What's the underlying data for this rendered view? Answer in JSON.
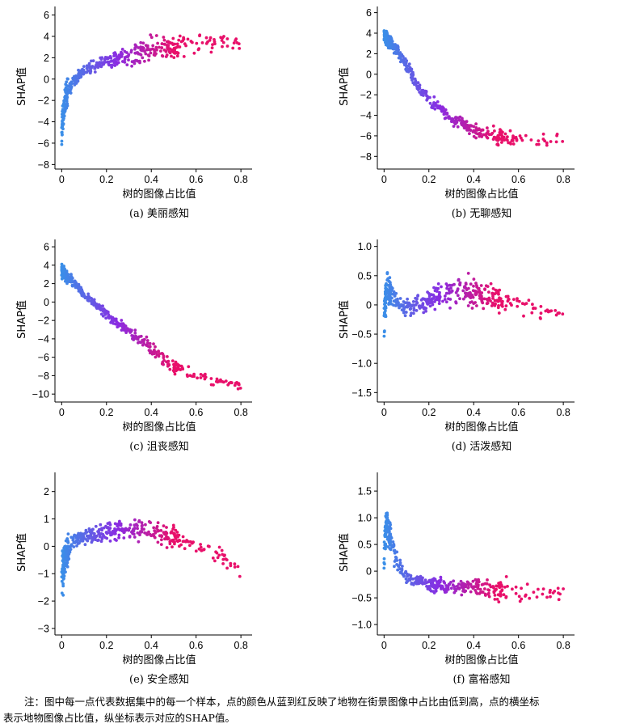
{
  "chart_data": [
    {
      "type": "scatter",
      "xlabel": "树的图像占比值",
      "ylabel": "SHAP值",
      "caption": "(a) 美丽感知",
      "xlim": [
        -0.03,
        0.85
      ],
      "ylim": [
        -8.2,
        6.8
      ],
      "xticks": [
        0,
        0.2,
        0.4,
        0.6,
        0.8
      ],
      "xtick_labels": [
        "0",
        "0.2",
        "0.4",
        "0.6",
        "0.8"
      ],
      "yticks": [
        -8,
        -6,
        -4,
        -2,
        0,
        2,
        4,
        6
      ],
      "ytick_labels": [
        "−8",
        "−6",
        "−4",
        "−2",
        "0",
        "2",
        "4",
        "6"
      ],
      "color_encoding": "x",
      "color_low": "#3a8fe8",
      "color_mid": "#8a2be2",
      "color_high": "#e8106a",
      "trend": [
        [
          0,
          -4.5
        ],
        [
          0.02,
          -1.5
        ],
        [
          0.05,
          -0.3
        ],
        [
          0.1,
          0.8
        ],
        [
          0.15,
          1.3
        ],
        [
          0.2,
          1.7
        ],
        [
          0.3,
          2.3
        ],
        [
          0.4,
          2.8
        ],
        [
          0.5,
          3.0
        ],
        [
          0.6,
          3.3
        ],
        [
          0.7,
          3.6
        ],
        [
          0.8,
          3.5
        ]
      ],
      "spread": [
        [
          0,
          2.6
        ],
        [
          0.05,
          0.8
        ],
        [
          0.2,
          0.9
        ],
        [
          0.4,
          1.7
        ],
        [
          0.6,
          1.5
        ],
        [
          0.8,
          1.2
        ]
      ]
    },
    {
      "type": "scatter",
      "xlabel": "树的图像占比值",
      "ylabel": "SHAP值",
      "caption": "(b) 无聊感知",
      "xlim": [
        -0.03,
        0.85
      ],
      "ylim": [
        -9.0,
        6.6
      ],
      "xticks": [
        0,
        0.2,
        0.4,
        0.6,
        0.8
      ],
      "xtick_labels": [
        "0",
        "0.2",
        "0.4",
        "0.6",
        "0.8"
      ],
      "yticks": [
        -8,
        -6,
        -4,
        -2,
        0,
        2,
        4,
        6
      ],
      "ytick_labels": [
        "−8",
        "−6",
        "−4",
        "−2",
        "0",
        "2",
        "4",
        "6"
      ],
      "color_encoding": "x",
      "color_low": "#3a8fe8",
      "color_mid": "#8a2be2",
      "color_high": "#e8106a",
      "trend": [
        [
          0,
          3.8
        ],
        [
          0.05,
          2.5
        ],
        [
          0.1,
          0.8
        ],
        [
          0.15,
          -1.2
        ],
        [
          0.2,
          -2.5
        ],
        [
          0.3,
          -4.2
        ],
        [
          0.4,
          -5.4
        ],
        [
          0.5,
          -6.0
        ],
        [
          0.6,
          -6.4
        ],
        [
          0.7,
          -6.4
        ],
        [
          0.8,
          -6.3
        ]
      ],
      "spread": [
        [
          0,
          1.0
        ],
        [
          0.1,
          0.8
        ],
        [
          0.3,
          0.9
        ],
        [
          0.5,
          1.0
        ],
        [
          0.8,
          0.6
        ]
      ]
    },
    {
      "type": "scatter",
      "xlabel": "树的图像占比值",
      "ylabel": "SHAP值",
      "caption": "(c) 沮丧感知",
      "xlim": [
        -0.03,
        0.85
      ],
      "ylim": [
        -10.6,
        6.8
      ],
      "xticks": [
        0,
        0.2,
        0.4,
        0.6,
        0.8
      ],
      "xtick_labels": [
        "0",
        "0.2",
        "0.4",
        "0.6",
        "0.8"
      ],
      "yticks": [
        -10,
        -8,
        -6,
        -4,
        -2,
        0,
        2,
        4,
        6
      ],
      "ytick_labels": [
        "−10",
        "−8",
        "−6",
        "−4",
        "−2",
        "0",
        "2",
        "4",
        "6"
      ],
      "color_encoding": "x",
      "color_low": "#3a8fe8",
      "color_mid": "#8a2be2",
      "color_high": "#e8106a",
      "trend": [
        [
          0,
          3.3
        ],
        [
          0.05,
          2.2
        ],
        [
          0.1,
          0.8
        ],
        [
          0.15,
          -0.2
        ],
        [
          0.2,
          -1.3
        ],
        [
          0.3,
          -3.2
        ],
        [
          0.4,
          -5.0
        ],
        [
          0.5,
          -7.0
        ],
        [
          0.6,
          -8.0
        ],
        [
          0.7,
          -8.6
        ],
        [
          0.8,
          -9.1
        ]
      ],
      "spread": [
        [
          0,
          1.2
        ],
        [
          0.1,
          0.6
        ],
        [
          0.3,
          0.8
        ],
        [
          0.5,
          1.1
        ],
        [
          0.8,
          0.5
        ]
      ]
    },
    {
      "type": "scatter",
      "xlabel": "树的图像占比值",
      "ylabel": "SHAP值",
      "caption": "(d) 活泼感知",
      "xlim": [
        -0.03,
        0.85
      ],
      "ylim": [
        -1.62,
        1.12
      ],
      "xticks": [
        0,
        0.2,
        0.4,
        0.6,
        0.8
      ],
      "xtick_labels": [
        "0",
        "0.2",
        "0.4",
        "0.6",
        "0.8"
      ],
      "yticks": [
        -1.5,
        -1.0,
        -0.5,
        0,
        0.5,
        1.0
      ],
      "ytick_labels": [
        "−1.5",
        "−1.0",
        "−0.5",
        "0",
        "0.5",
        "1.0"
      ],
      "color_encoding": "x",
      "color_low": "#3a8fe8",
      "color_mid": "#8a2be2",
      "color_high": "#e8106a",
      "trend": [
        [
          0,
          -0.2
        ],
        [
          0.01,
          0.3
        ],
        [
          0.04,
          0.15
        ],
        [
          0.08,
          -0.05
        ],
        [
          0.15,
          0.0
        ],
        [
          0.25,
          0.15
        ],
        [
          0.35,
          0.25
        ],
        [
          0.45,
          0.15
        ],
        [
          0.55,
          0.05
        ],
        [
          0.65,
          -0.05
        ],
        [
          0.8,
          -0.15
        ]
      ],
      "spread": [
        [
          0,
          0.6
        ],
        [
          0.05,
          0.2
        ],
        [
          0.2,
          0.25
        ],
        [
          0.35,
          0.35
        ],
        [
          0.6,
          0.25
        ],
        [
          0.8,
          0.15
        ]
      ]
    },
    {
      "type": "scatter",
      "xlabel": "树的图像占比值",
      "ylabel": "SHAP值",
      "caption": "(e) 安全感知",
      "xlim": [
        -0.03,
        0.85
      ],
      "ylim": [
        -3.15,
        2.7
      ],
      "xticks": [
        0,
        0.2,
        0.4,
        0.6,
        0.8
      ],
      "xtick_labels": [
        "0",
        "0.2",
        "0.4",
        "0.6",
        "0.8"
      ],
      "yticks": [
        -3,
        -2,
        -1,
        0,
        1,
        2
      ],
      "ytick_labels": [
        "−3",
        "−2",
        "−1",
        "0",
        "1",
        "2"
      ],
      "color_encoding": "x",
      "color_low": "#3a8fe8",
      "color_mid": "#8a2be2",
      "color_high": "#e8106a",
      "trend": [
        [
          0,
          -1.2
        ],
        [
          0.02,
          -0.2
        ],
        [
          0.05,
          0.2
        ],
        [
          0.1,
          0.35
        ],
        [
          0.2,
          0.55
        ],
        [
          0.3,
          0.65
        ],
        [
          0.4,
          0.6
        ],
        [
          0.5,
          0.35
        ],
        [
          0.6,
          0.05
        ],
        [
          0.7,
          -0.35
        ],
        [
          0.8,
          -1.0
        ]
      ],
      "spread": [
        [
          0,
          1.4
        ],
        [
          0.05,
          0.35
        ],
        [
          0.2,
          0.45
        ],
        [
          0.35,
          0.6
        ],
        [
          0.6,
          0.5
        ],
        [
          0.8,
          0.7
        ]
      ]
    },
    {
      "type": "scatter",
      "xlabel": "树的图像占比值",
      "ylabel": "SHAP值",
      "caption": "(f) 富裕感知",
      "xlim": [
        -0.03,
        0.85
      ],
      "ylim": [
        -1.15,
        1.85
      ],
      "xticks": [
        0,
        0.2,
        0.4,
        0.6,
        0.8
      ],
      "xtick_labels": [
        "0",
        "0.2",
        "0.4",
        "0.6",
        "0.8"
      ],
      "yticks": [
        -1.0,
        -0.5,
        0,
        0.5,
        1.0,
        1.5
      ],
      "ytick_labels": [
        "−1.0",
        "−0.5",
        "0",
        "0.5",
        "1.0",
        "1.5"
      ],
      "color_encoding": "x",
      "color_low": "#3a8fe8",
      "color_mid": "#8a2be2",
      "color_high": "#e8106a",
      "trend": [
        [
          0,
          0.3
        ],
        [
          0.01,
          0.9
        ],
        [
          0.03,
          0.6
        ],
        [
          0.06,
          0.15
        ],
        [
          0.1,
          -0.1
        ],
        [
          0.2,
          -0.25
        ],
        [
          0.35,
          -0.3
        ],
        [
          0.5,
          -0.35
        ],
        [
          0.65,
          -0.38
        ],
        [
          0.8,
          -0.4
        ]
      ],
      "spread": [
        [
          0,
          0.5
        ],
        [
          0.03,
          0.35
        ],
        [
          0.1,
          0.15
        ],
        [
          0.3,
          0.2
        ],
        [
          0.5,
          0.3
        ],
        [
          0.8,
          0.2
        ]
      ]
    }
  ],
  "note": {
    "line1": "注：图中每一点代表数据集中的每一个样本，点的颜色从蓝到红反映了地物在街景图像中占比由低到高，点的横坐标",
    "line2": "表示地物图像占比值，纵坐标表示对应的SHAP值。"
  }
}
